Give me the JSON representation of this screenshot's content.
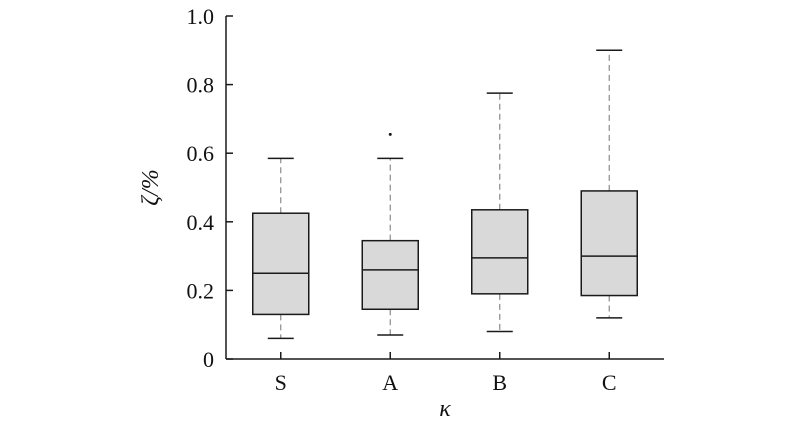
{
  "chart_data": {
    "type": "boxplot",
    "title": "",
    "xlabel": "κ",
    "ylabel": "ζ/%",
    "ylim": [
      0,
      1.0
    ],
    "y_ticks": [
      "0",
      "0.2",
      "0.4",
      "0.6",
      "0.8",
      "1.0"
    ],
    "y_tick_values": [
      0,
      0.2,
      0.4,
      0.6,
      0.8,
      1.0
    ],
    "categories": [
      "S",
      "A",
      "B",
      "C"
    ],
    "boxes": [
      {
        "category": "S",
        "whisker_low": 0.06,
        "q1": 0.13,
        "median": 0.25,
        "q3": 0.425,
        "whisker_high": 0.585,
        "outliers": []
      },
      {
        "category": "A",
        "whisker_low": 0.07,
        "q1": 0.145,
        "median": 0.26,
        "q3": 0.345,
        "whisker_high": 0.585,
        "outliers": [
          0.655
        ]
      },
      {
        "category": "B",
        "whisker_low": 0.08,
        "q1": 0.19,
        "median": 0.295,
        "q3": 0.435,
        "whisker_high": 0.775,
        "outliers": []
      },
      {
        "category": "C",
        "whisker_low": 0.12,
        "q1": 0.185,
        "median": 0.3,
        "q3": 0.49,
        "whisker_high": 0.9,
        "outliers": []
      }
    ],
    "grid": false,
    "box_fill": "#d9d9d9",
    "line_color": "#1a1a1a",
    "whisker_color": "#8a8a8a"
  }
}
